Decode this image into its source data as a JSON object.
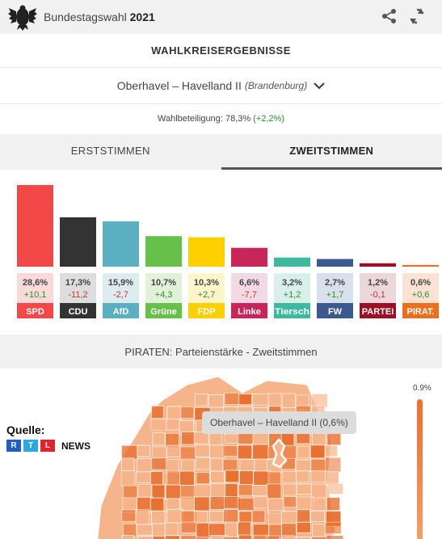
{
  "header": {
    "title": "Bundestagswahl",
    "year": "2021"
  },
  "section_title": "WAHLKREISERGEBNISSE",
  "district": {
    "name": "Oberhavel – Havelland II",
    "state": "(Brandenburg)"
  },
  "turnout": {
    "label": "Wahlbeteiligung: 78,3%",
    "delta": "(+2,2%)"
  },
  "tabs": [
    {
      "label": "ERSTSTIMMEN",
      "active": false
    },
    {
      "label": "ZWEITSTIMMEN",
      "active": true
    }
  ],
  "chart_data": {
    "type": "bar",
    "categories": [
      "SPD",
      "CDU",
      "AfD",
      "Grüne",
      "FDP",
      "Linke",
      "Tiersch",
      "FW",
      "PARTEI",
      "PIRAT."
    ],
    "values": [
      28.6,
      17.3,
      15.9,
      10.7,
      10.3,
      6.6,
      3.2,
      2.7,
      1.2,
      0.6
    ],
    "value_labels": [
      "28,6%",
      "17,3%",
      "15,9%",
      "10,7%",
      "10,3%",
      "6,6%",
      "3,2%",
      "2,7%",
      "1,2%",
      "0,6%"
    ],
    "change_labels": [
      "+10,1",
      "-11,2",
      "-2,7",
      "+4,3",
      "+2,7",
      "-7,7",
      "+1,2",
      "+1,7",
      "-0,1",
      "+0,6"
    ],
    "colors": [
      "#f24848",
      "#333333",
      "#5aafc0",
      "#66c04a",
      "#ffd000",
      "#c8265a",
      "#3fb8a0",
      "#3c5a90",
      "#9a1025",
      "#ea7020"
    ],
    "label_bg": [
      "#fad9d9",
      "#dddddd",
      "#dcecef",
      "#e2f2da",
      "#fff5cc",
      "#f2d9e3",
      "#d9f0ea",
      "#d9e0ec",
      "#ecd7db",
      "#fbe2d2"
    ],
    "change_colors": [
      "#2e8b2e",
      "#c0392b",
      "#c0392b",
      "#2e8b2e",
      "#2e8b2e",
      "#c0392b",
      "#2e8b2e",
      "#2e8b2e",
      "#c0392b",
      "#2e8b2e"
    ],
    "ylim": [
      0,
      28.6
    ]
  },
  "map": {
    "title": "PIRATEN: Parteienstärke - Zweitstimmen",
    "tooltip": "Oberhavel – Havelland II (0,6%)",
    "legend_max": "0.9%",
    "source_label": "Quelle:",
    "source_letters": [
      "R",
      "T",
      "L"
    ],
    "source_suffix": "NEWS",
    "colors": {
      "dark": "#e87030",
      "light": "#f6b48a",
      "border": "#ffffff"
    }
  }
}
